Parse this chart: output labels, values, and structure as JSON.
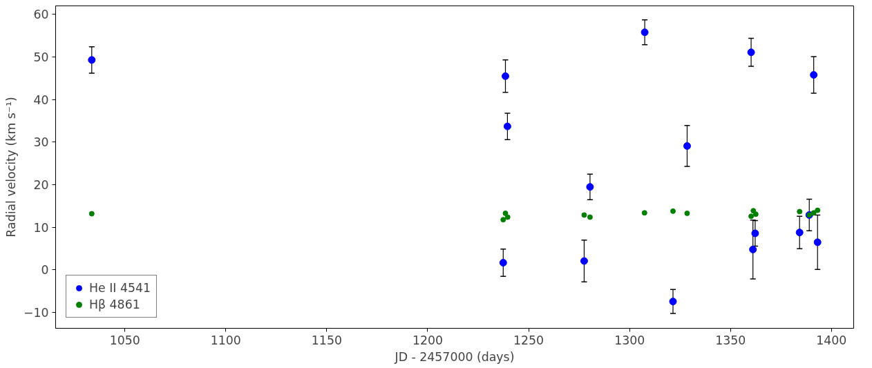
{
  "chart_data": {
    "type": "scatter",
    "xlabel": "JD - 2457000 (days)",
    "ylabel": "Radial velocity (km s⁻¹)",
    "xlim": [
      1015.7,
      1411
    ],
    "ylim": [
      -13.7,
      62
    ],
    "xticks": [
      1050,
      1100,
      1150,
      1200,
      1250,
      1300,
      1350,
      1400
    ],
    "yticks": [
      {
        "value": -10,
        "label": "−10"
      },
      0,
      10,
      20,
      30,
      40,
      50,
      60
    ],
    "grid": false,
    "legend": "bottom left",
    "marker": "circle",
    "series": [
      {
        "name": "He II 4541",
        "color": "#0000ff",
        "x": [
          1033.6,
          1238.5,
          1239.5,
          1237.4,
          1280.4,
          1277.5,
          1307.5,
          1321.5,
          1328.5,
          1360.2,
          1391.2,
          1362.2,
          1361.1,
          1384.2,
          1389.0,
          1393.1
        ],
        "values": [
          49.3,
          45.5,
          33.7,
          1.7,
          19.5,
          2.1,
          55.8,
          -7.4,
          29.1,
          51.1,
          45.8,
          8.6,
          4.8,
          8.8,
          12.9,
          6.5
        ],
        "errors": [
          3.1,
          3.8,
          3.1,
          3.2,
          3.0,
          4.9,
          2.9,
          2.8,
          4.8,
          3.3,
          4.3,
          3.0,
          6.9,
          3.8,
          3.7,
          6.4
        ]
      },
      {
        "name": "Hβ 4861",
        "color": "#008000",
        "x": [
          1033.6,
          1238.5,
          1237.4,
          1239.6,
          1277.5,
          1280.4,
          1307.4,
          1321.5,
          1328.5,
          1361.3,
          1360.2,
          1362.5,
          1384.2,
          1389.0,
          1391.2,
          1393.1
        ],
        "values": [
          13.2,
          13.3,
          11.8,
          12.4,
          12.9,
          12.4,
          13.4,
          13.8,
          13.3,
          13.9,
          12.6,
          13.1,
          13.7,
          12.9,
          13.4,
          14.0
        ]
      }
    ]
  }
}
